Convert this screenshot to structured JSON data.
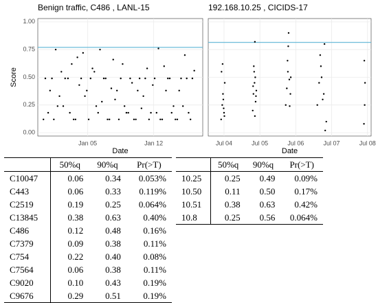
{
  "chart_data": [
    {
      "type": "scatter",
      "title": "Benign traffic,  C486 , LANL-15",
      "x_label": "Date",
      "y_label": "Score",
      "xlim": [
        -0.3,
        17.2
      ],
      "xticks": [
        {
          "value": 5,
          "label": "Jan 05"
        },
        {
          "value": 12,
          "label": "Jan 12"
        }
      ],
      "ylim": [
        -0.03,
        1.03
      ],
      "yticks": [
        {
          "value": 0,
          "label": "0.00"
        },
        {
          "value": 0.25,
          "label": "0.25"
        },
        {
          "value": 0.5,
          "label": "0.50"
        },
        {
          "value": 0.75,
          "label": "0.75"
        },
        {
          "value": 1,
          "label": "1.00"
        }
      ],
      "grid": true,
      "threshold": 0.77,
      "threshold_color": "#5bb5d6",
      "color": "#000000",
      "x": [
        0.3,
        0.8,
        1.2,
        1.6,
        2.0,
        2.4,
        2.9,
        3.3,
        3.7,
        4.1,
        4.5,
        4.9,
        5.3,
        5.7,
        6.1,
        6.5,
        6.9,
        7.3,
        7.7,
        8.1,
        8.5,
        8.9,
        9.3,
        9.7,
        10.1,
        10.5,
        10.9,
        11.3,
        11.7,
        12.1,
        12.5,
        12.9,
        13.3,
        13.7,
        14.1,
        14.5,
        14.9,
        15.3,
        15.7,
        16.1,
        0.5,
        1.0,
        1.4,
        1.8,
        2.2,
        2.6,
        3.1,
        3.5,
        3.9,
        4.3,
        4.7,
        5.1,
        5.5,
        5.9,
        6.3,
        6.7,
        7.1,
        7.5,
        7.9,
        8.3,
        8.7,
        9.1,
        9.5,
        9.9,
        10.3,
        10.7,
        11.1,
        11.5,
        11.9,
        12.3,
        12.7,
        13.1,
        13.5,
        13.9,
        14.3,
        14.7,
        15.1,
        15.5,
        15.9,
        16.3
      ],
      "y": [
        0.12,
        0.18,
        0.49,
        0.75,
        0.33,
        0.24,
        0.49,
        0.62,
        0.12,
        0.43,
        0.72,
        0.38,
        0.49,
        0.55,
        0.18,
        0.28,
        0.49,
        0.12,
        0.66,
        0.38,
        0.49,
        0.24,
        0.18,
        0.45,
        0.12,
        0.49,
        0.33,
        0.58,
        0.18,
        0.49,
        0.76,
        0.12,
        0.38,
        0.49,
        0.24,
        0.12,
        0.49,
        0.7,
        0.18,
        0.49,
        0.49,
        0.38,
        0.12,
        0.24,
        0.55,
        0.49,
        0.18,
        0.12,
        0.68,
        0.49,
        0.33,
        0.12,
        0.58,
        0.24,
        0.75,
        0.49,
        0.12,
        0.4,
        0.3,
        0.12,
        0.62,
        0.18,
        0.49,
        0.12,
        0.38,
        0.22,
        0.49,
        0.12,
        0.43,
        0.18,
        0.12,
        0.6,
        0.49,
        0.18,
        0.12,
        0.38,
        0.24,
        0.49,
        0.12,
        0.56
      ]
    },
    {
      "type": "scatter",
      "title": "192.168.10.25 , CICIDS-17",
      "x_label": "Date",
      "xlim": [
        3.56,
        8.1
      ],
      "xticks": [
        {
          "value": 4,
          "label": "Jul 04"
        },
        {
          "value": 5,
          "label": "Jul 05"
        },
        {
          "value": 6,
          "label": "Jul 06"
        },
        {
          "value": 7,
          "label": "Jul 07"
        },
        {
          "value": 8,
          "label": "Jul 08"
        }
      ],
      "ylim": [
        -0.03,
        1.03
      ],
      "yticks": [
        0,
        0.25,
        0.5,
        0.75,
        1
      ],
      "grid": true,
      "threshold": 0.815,
      "threshold_color": "#5bb5d6",
      "color": "#000000",
      "x": [
        3.92,
        3.95,
        3.97,
        4.0,
        4.02,
        3.93,
        3.98,
        4.01,
        3.96,
        3.99,
        4.8,
        4.82,
        4.85,
        4.87,
        4.9,
        4.83,
        4.86,
        4.88,
        4.81,
        4.84,
        4.89,
        4.86,
        5.72,
        5.75,
        5.78,
        5.8,
        5.82,
        5.85,
        5.77,
        5.83,
        5.79,
        5.86,
        6.6,
        6.65,
        6.7,
        6.75,
        6.8,
        6.85,
        6.72,
        6.78,
        6.68,
        6.82,
        7.9,
        7.92,
        7.93,
        7.91
      ],
      "y": [
        0.12,
        0.25,
        0.35,
        0.18,
        0.45,
        0.55,
        0.3,
        0.15,
        0.62,
        0.22,
        0.2,
        0.35,
        0.45,
        0.5,
        0.38,
        0.6,
        0.82,
        0.28,
        0.42,
        0.55,
        0.33,
        0.15,
        0.25,
        0.4,
        0.55,
        0.9,
        0.48,
        0.35,
        0.65,
        0.24,
        0.78,
        0.5,
        0.25,
        0.45,
        0.6,
        0.3,
        0.8,
        0.1,
        0.5,
        0.35,
        0.7,
        0.02,
        0.08,
        0.25,
        0.45,
        0.65
      ]
    }
  ],
  "tables": [
    {
      "header": [
        "50%q",
        "90%q",
        "Pr(>T)"
      ],
      "rows": [
        [
          "C10047",
          "0.06",
          "0.34",
          "0.053%"
        ],
        [
          "C443",
          "0.06",
          "0.33",
          "0.119%"
        ],
        [
          "C2519",
          "0.19",
          "0.25",
          "0.064%"
        ],
        [
          "C13845",
          "0.38",
          "0.63",
          "0.40%"
        ],
        [
          "C486",
          "0.12",
          "0.48",
          "0.16%"
        ],
        [
          "C7379",
          "0.09",
          "0.38",
          "0.11%"
        ],
        [
          "C754",
          "0.22",
          "0.40",
          "0.08%"
        ],
        [
          "C7564",
          "0.06",
          "0.38",
          "0.11%"
        ],
        [
          "C9020",
          "0.10",
          "0.43",
          "0.19%"
        ],
        [
          "C9676",
          "0.29",
          "0.51",
          "0.19%"
        ]
      ]
    },
    {
      "header": [
        "50%q",
        "90%q",
        "Pr(>T)"
      ],
      "rows": [
        [
          "10.25",
          "0.25",
          "0.49",
          "0.09%"
        ],
        [
          "10.50",
          "0.11",
          "0.50",
          "0.17%"
        ],
        [
          "10.51",
          "0.38",
          "0.63",
          "0.42%"
        ],
        [
          "10.8",
          "0.25",
          "0.56",
          "0.064%"
        ]
      ]
    }
  ]
}
